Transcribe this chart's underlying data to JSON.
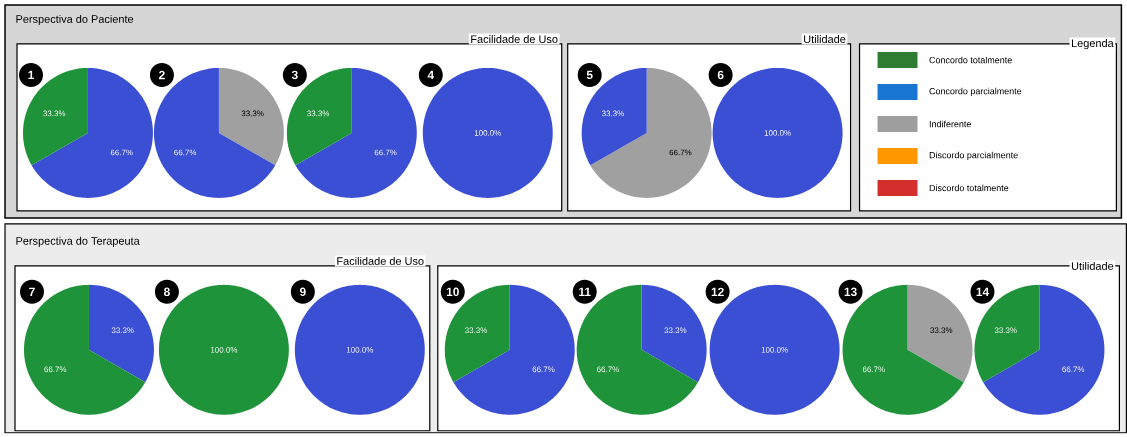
{
  "chart_data": [
    {
      "type": "pie",
      "title": "1",
      "categories": [
        null,
        null
      ],
      "values": [
        66.7,
        33.3
      ],
      "colors": [
        "#3a4fd4",
        "#1e9339"
      ],
      "value_labels": [
        "66.7%",
        "33.3%"
      ],
      "annotations": [
        "Perspectiva do Paciente",
        "Facilidade de Uso"
      ]
    },
    {
      "type": "pie",
      "title": "2",
      "categories": [
        null,
        null
      ],
      "values": [
        33.3,
        66.7
      ],
      "colors": [
        "#a0a0a0",
        "#3a4fd4"
      ],
      "value_labels": [
        "33.3%",
        "66.7%"
      ]
    },
    {
      "type": "pie",
      "title": "3",
      "categories": [
        null,
        null
      ],
      "values": [
        66.7,
        33.3
      ],
      "colors": [
        "#3a4fd4",
        "#1e9339"
      ],
      "value_labels": [
        "66.7%",
        "33.3%"
      ]
    },
    {
      "type": "pie",
      "title": "4",
      "categories": [
        null
      ],
      "values": [
        100
      ],
      "colors": [
        "#3a4fd4"
      ],
      "value_labels": [
        "100.0%"
      ]
    },
    {
      "type": "pie",
      "title": "5",
      "categories": [
        null,
        null
      ],
      "values": [
        66.7,
        33.3
      ],
      "colors": [
        "#a0a0a0",
        "#3a4fd4"
      ],
      "value_labels": [
        "66.7%",
        "33.3%"
      ],
      "annotations": [
        "Utilidade"
      ]
    },
    {
      "type": "pie",
      "title": "6",
      "categories": [
        null
      ],
      "values": [
        100
      ],
      "colors": [
        "#3a4fd4"
      ],
      "value_labels": [
        "100.0%"
      ]
    },
    {
      "type": "other",
      "title": "Legenda",
      "categories": [
        "Concordo totalmente",
        "Concordo parcialmente",
        "Indiferente",
        "Discordo parcialmente",
        "Discordo totalmente"
      ],
      "colors": [
        "#2e7d32",
        "#1976d2",
        "#9e9e9e",
        "#ff9800",
        "#d32f2f"
      ]
    },
    {
      "type": "pie",
      "title": "7",
      "categories": [
        null,
        null
      ],
      "values": [
        33.3,
        66.7
      ],
      "colors": [
        "#3a4fd4",
        "#1e9339"
      ],
      "value_labels": [
        "33.3%",
        "66.7%"
      ],
      "annotations": [
        "Perspectiva do Terapeuta",
        "Facilidade de Uso"
      ]
    },
    {
      "type": "pie",
      "title": "8",
      "categories": [
        null
      ],
      "values": [
        100
      ],
      "colors": [
        "#1e9339"
      ],
      "value_labels": [
        "100.0%"
      ]
    },
    {
      "type": "pie",
      "title": "9",
      "categories": [
        null
      ],
      "values": [
        100
      ],
      "colors": [
        "#3a4fd4"
      ],
      "value_labels": [
        "100.0%"
      ]
    },
    {
      "type": "pie",
      "title": "10",
      "categories": [
        null,
        null
      ],
      "values": [
        66.7,
        33.3
      ],
      "colors": [
        "#3a4fd4",
        "#1e9339"
      ],
      "value_labels": [
        "66.7%",
        "33.3%"
      ],
      "annotations": [
        "Utilidade"
      ]
    },
    {
      "type": "pie",
      "title": "11",
      "categories": [
        null,
        null
      ],
      "values": [
        33.3,
        66.7
      ],
      "colors": [
        "#3a4fd4",
        "#1e9339"
      ],
      "value_labels": [
        "33.3%",
        "66.7%"
      ]
    },
    {
      "type": "pie",
      "title": "12",
      "categories": [
        null
      ],
      "values": [
        100
      ],
      "colors": [
        "#3a4fd4"
      ],
      "value_labels": [
        "100.0%"
      ]
    },
    {
      "type": "pie",
      "title": "13",
      "categories": [
        null,
        null
      ],
      "values": [
        33.3,
        66.7
      ],
      "colors": [
        "#a0a0a0",
        "#1e9339"
      ],
      "value_labels": [
        "33.3%",
        "66.7%"
      ]
    },
    {
      "type": "pie",
      "title": "14",
      "categories": [
        null,
        null
      ],
      "values": [
        66.7,
        33.3
      ],
      "colors": [
        "#3a4fd4",
        "#1e9339"
      ],
      "value_labels": [
        "66.7%",
        "33.3%"
      ]
    }
  ]
}
